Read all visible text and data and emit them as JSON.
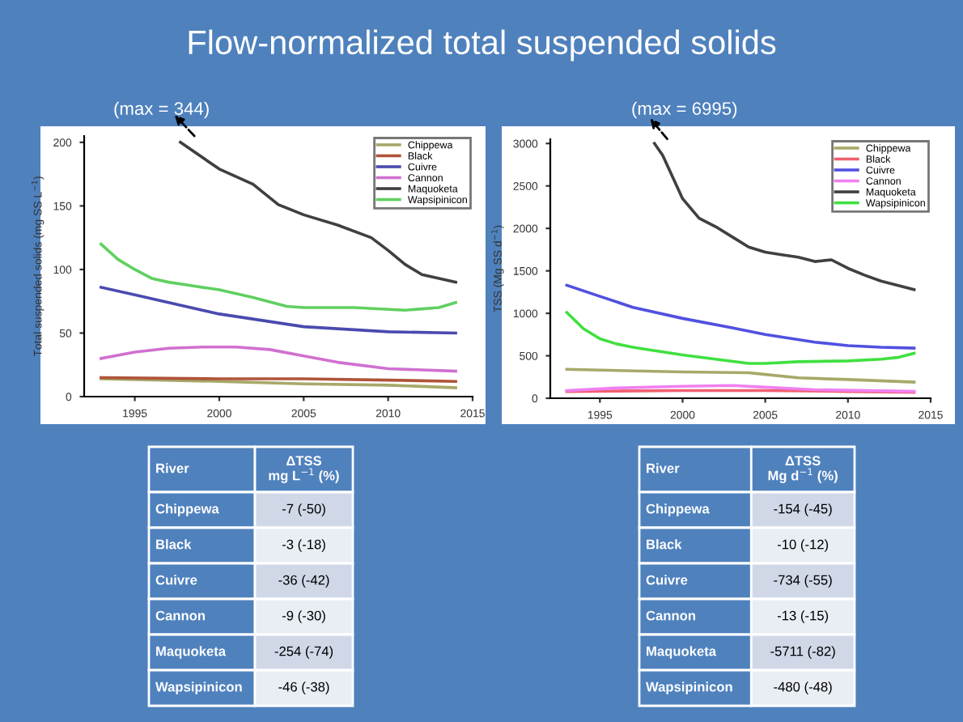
{
  "chart_data": [
    {
      "type": "line",
      "title": "Flow-normalized total suspended solids",
      "ylabel": "Total suspended solids (mg SS L$^{−1}$)",
      "xlim": [
        1992,
        2015
      ],
      "xticks": [
        1995,
        2000,
        2005,
        2010,
        2015
      ],
      "ylim": [
        0,
        205
      ],
      "yticks": [
        0,
        50,
        100,
        150,
        200
      ],
      "legend": "top right",
      "grid": false,
      "series": [
        {
          "name": "Chippewa",
          "color": "#a8a86a",
          "x": [
            1993,
            2000,
            2005,
            2010,
            2014
          ],
          "values": [
            14,
            12,
            10,
            9,
            7
          ]
        },
        {
          "name": "Black",
          "color": "#b0543a",
          "x": [
            1993,
            2000,
            2005,
            2010,
            2014
          ],
          "values": [
            15,
            14,
            14,
            13,
            12
          ]
        },
        {
          "name": "Cuivre",
          "color": "#4a4ab0",
          "x": [
            1993,
            1995,
            2000,
            2005,
            2010,
            2014
          ],
          "values": [
            86,
            80,
            65,
            55,
            51,
            50
          ]
        },
        {
          "name": "Cannon",
          "color": "#d070d0",
          "x": [
            1993,
            1995,
            1997,
            1999,
            2001,
            2003,
            2005,
            2007,
            2010,
            2014
          ],
          "values": [
            30,
            35,
            38,
            39,
            39,
            37,
            32,
            27,
            22,
            20
          ]
        },
        {
          "name": "Maquoketa",
          "color": "#404040",
          "x": [
            1997.7,
            2000,
            2002,
            2003.5,
            2005,
            2007,
            2009,
            2010,
            2011,
            2012,
            2014
          ],
          "values": [
            200,
            179,
            167,
            151,
            143,
            135,
            125,
            115,
            104,
            96,
            90
          ]
        },
        {
          "name": "Wapsipinicon",
          "color": "#60d060",
          "x": [
            1993,
            1994,
            1995,
            1996,
            1997,
            1998,
            2000,
            2002,
            2004,
            2005,
            2008,
            2011,
            2012,
            2013,
            2014
          ],
          "values": [
            120,
            108,
            100,
            93,
            90,
            88,
            84,
            78,
            71,
            70,
            70,
            68,
            69,
            70,
            74
          ]
        }
      ],
      "annotations": [
        "(max = 344)",
        "River",
        "ΔTSS\nmg L$^{−1}$ (%)",
        "Chippewa",
        "-7 (-50)",
        "Black",
        "-3 (-18)",
        "Cuivre",
        "-36 (-42)",
        "Cannon",
        "-9 (-30)",
        "Maquoketa",
        "-254 (-74)",
        "Wapsipinicon",
        "-46 (-38)"
      ]
    },
    {
      "type": "line",
      "ylabel": "TSS (Mg SS d$^{−1}$)",
      "xlim": [
        1992,
        2015
      ],
      "xticks": [
        1995,
        2000,
        2005,
        2010,
        2015
      ],
      "ylim": [
        0,
        3050
      ],
      "yticks": [
        0,
        500,
        1000,
        1500,
        2000,
        2500,
        3000
      ],
      "legend": "top right",
      "grid": false,
      "series": [
        {
          "name": "Chippewa",
          "color": "#a8a86a",
          "x": [
            1993,
            2000,
            2004,
            2005,
            2007,
            2010,
            2014
          ],
          "values": [
            340,
            310,
            300,
            280,
            240,
            220,
            190
          ]
        },
        {
          "name": "Black",
          "color": "#f06070",
          "x": [
            1993,
            2000,
            2005,
            2010,
            2014
          ],
          "values": [
            80,
            90,
            90,
            80,
            70
          ]
        },
        {
          "name": "Cuivre",
          "color": "#5050e0",
          "x": [
            1993,
            1995,
            1997,
            2000,
            2003,
            2005,
            2008,
            2010,
            2012,
            2014
          ],
          "values": [
            1330,
            1200,
            1070,
            940,
            830,
            750,
            660,
            620,
            600,
            590
          ]
        },
        {
          "name": "Cannon",
          "color": "#f080f0",
          "x": [
            1993,
            1996,
            2000,
            2003,
            2005,
            2008,
            2014
          ],
          "values": [
            90,
            120,
            140,
            150,
            130,
            100,
            80
          ]
        },
        {
          "name": "Maquoketa",
          "color": "#404040",
          "x": [
            1998.3,
            1998.8,
            2000,
            2001,
            2002,
            2003,
            2004,
            2005,
            2006,
            2007,
            2008,
            2009,
            2010,
            2011,
            2012,
            2013,
            2014
          ],
          "values": [
            3000,
            2860,
            2350,
            2120,
            2020,
            1900,
            1780,
            1720,
            1690,
            1660,
            1610,
            1630,
            1530,
            1450,
            1380,
            1330,
            1280
          ]
        },
        {
          "name": "Wapsipinicon",
          "color": "#40e040",
          "x": [
            1993,
            1994,
            1995,
            1996,
            1997,
            1998,
            2000,
            2002,
            2004,
            2005,
            2007,
            2010,
            2012,
            2013,
            2014
          ],
          "values": [
            1010,
            820,
            700,
            640,
            600,
            570,
            510,
            460,
            410,
            410,
            430,
            440,
            460,
            480,
            530
          ]
        }
      ],
      "annotations": [
        "(max = 6995)",
        "River",
        "ΔTSS\nMg d$^{−1}$ (%)",
        "Chippewa",
        "-154 (-45)",
        "Black",
        "-10 (-12)",
        "Cuivre",
        "-734 (-55)",
        "Cannon",
        "-13 (-15)",
        "Maquoketa",
        "-5711 (-82)",
        "Wapsipinicon",
        "-480 (-48)"
      ]
    }
  ]
}
